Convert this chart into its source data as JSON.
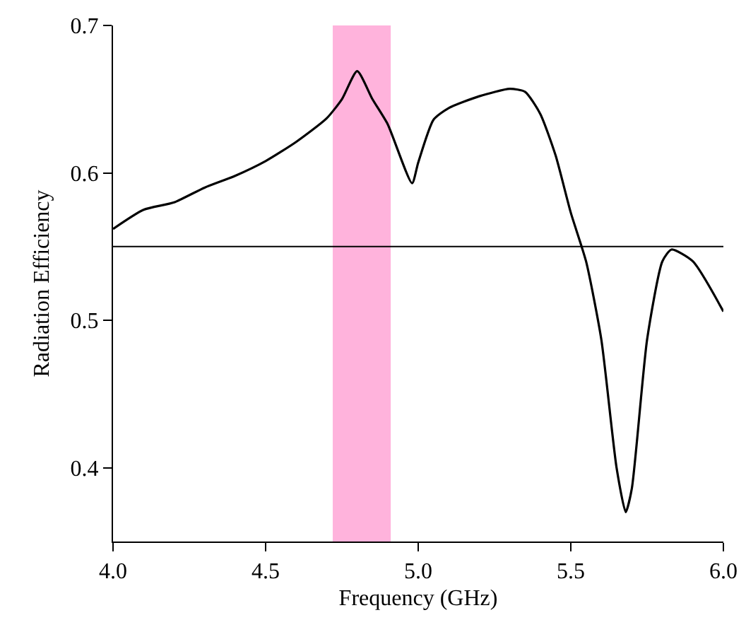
{
  "chart_data": {
    "type": "line",
    "xlabel": "Frequency (GHz)",
    "ylabel": "Radiation Efficiency",
    "x": [
      4.0,
      4.1,
      4.2,
      4.3,
      4.4,
      4.5,
      4.6,
      4.7,
      4.75,
      4.8,
      4.85,
      4.9,
      4.98,
      5.0,
      5.05,
      5.1,
      5.2,
      5.3,
      5.35,
      5.4,
      5.45,
      5.5,
      5.55,
      5.6,
      5.65,
      5.68,
      5.7,
      5.75,
      5.8,
      5.83,
      5.9,
      6.0
    ],
    "series": [
      {
        "color": "#000000",
        "values": [
          0.562,
          0.575,
          0.58,
          0.59,
          0.598,
          0.608,
          0.621,
          0.637,
          0.65,
          0.669,
          0.65,
          0.633,
          0.593,
          0.607,
          0.636,
          0.644,
          0.652,
          0.657,
          0.655,
          0.64,
          0.612,
          0.573,
          0.54,
          0.487,
          0.4,
          0.37,
          0.386,
          0.487,
          0.54,
          0.548,
          0.54,
          0.506
        ]
      }
    ],
    "xlim": [
      4.0,
      6.0
    ],
    "xticks": [
      {
        "value": 4,
        "label": "4.0"
      },
      4.5,
      {
        "value": 5,
        "label": "5.0"
      },
      5.5,
      {
        "value": 6,
        "label": "6.0"
      }
    ],
    "ylim": [
      0.35,
      0.7
    ],
    "yticks": [
      0.4,
      0.5,
      0.6,
      0.7
    ],
    "ref_lines": [
      {
        "axis": "y",
        "value": 0.55,
        "color": "#000000"
      }
    ],
    "bands": [
      {
        "axis": "x",
        "from": 4.72,
        "to": 4.91,
        "color": "#ffb3dc"
      }
    ],
    "marker": "none",
    "line_style": "solid"
  }
}
